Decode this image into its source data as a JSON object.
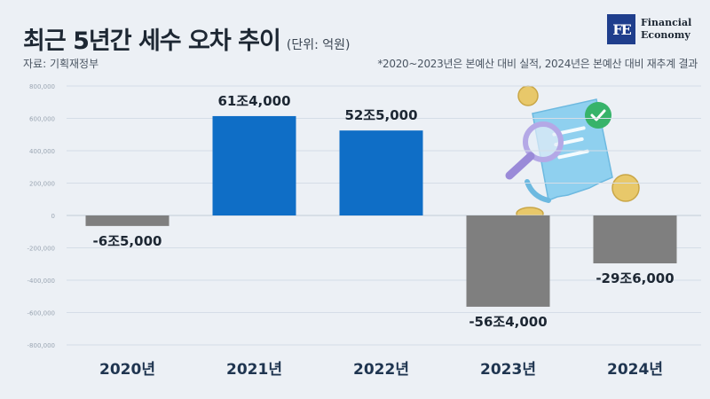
{
  "header": {
    "title": "최근 5년간 세수 오차 추이",
    "unit": "(단위: 억원)",
    "source": "자료: 기획재정부",
    "note": "*2020~2023년은 본예산 대비 실적, 2024년은 본예산 대비 재추계 결과"
  },
  "logo": {
    "mark": "FE",
    "line1": "Financial",
    "line2": "Economy"
  },
  "colors": {
    "positive": "#0f6ec6",
    "negative": "#7f7f7f",
    "label": "#1d2733",
    "category": "#1f3550"
  },
  "chart_data": {
    "type": "bar",
    "categories": [
      "2020년",
      "2021년",
      "2022년",
      "2023년",
      "2024년"
    ],
    "values": [
      -65000,
      614000,
      525000,
      -564000,
      -296000
    ],
    "data_labels": [
      "-6조5,000",
      "61조4,000",
      "52조5,000",
      "-56조4,000",
      "-29조6,000"
    ],
    "ylim": [
      -800000,
      800000
    ],
    "yticks": [
      800000,
      600000,
      400000,
      200000,
      0,
      -200000,
      -400000,
      -600000,
      -800000
    ],
    "ytick_labels": [
      "800,000",
      "600,000",
      "400,000",
      "200,000",
      "0",
      "-200,000",
      "-400,000",
      "-600,000",
      "-800,000"
    ],
    "grid": true
  }
}
